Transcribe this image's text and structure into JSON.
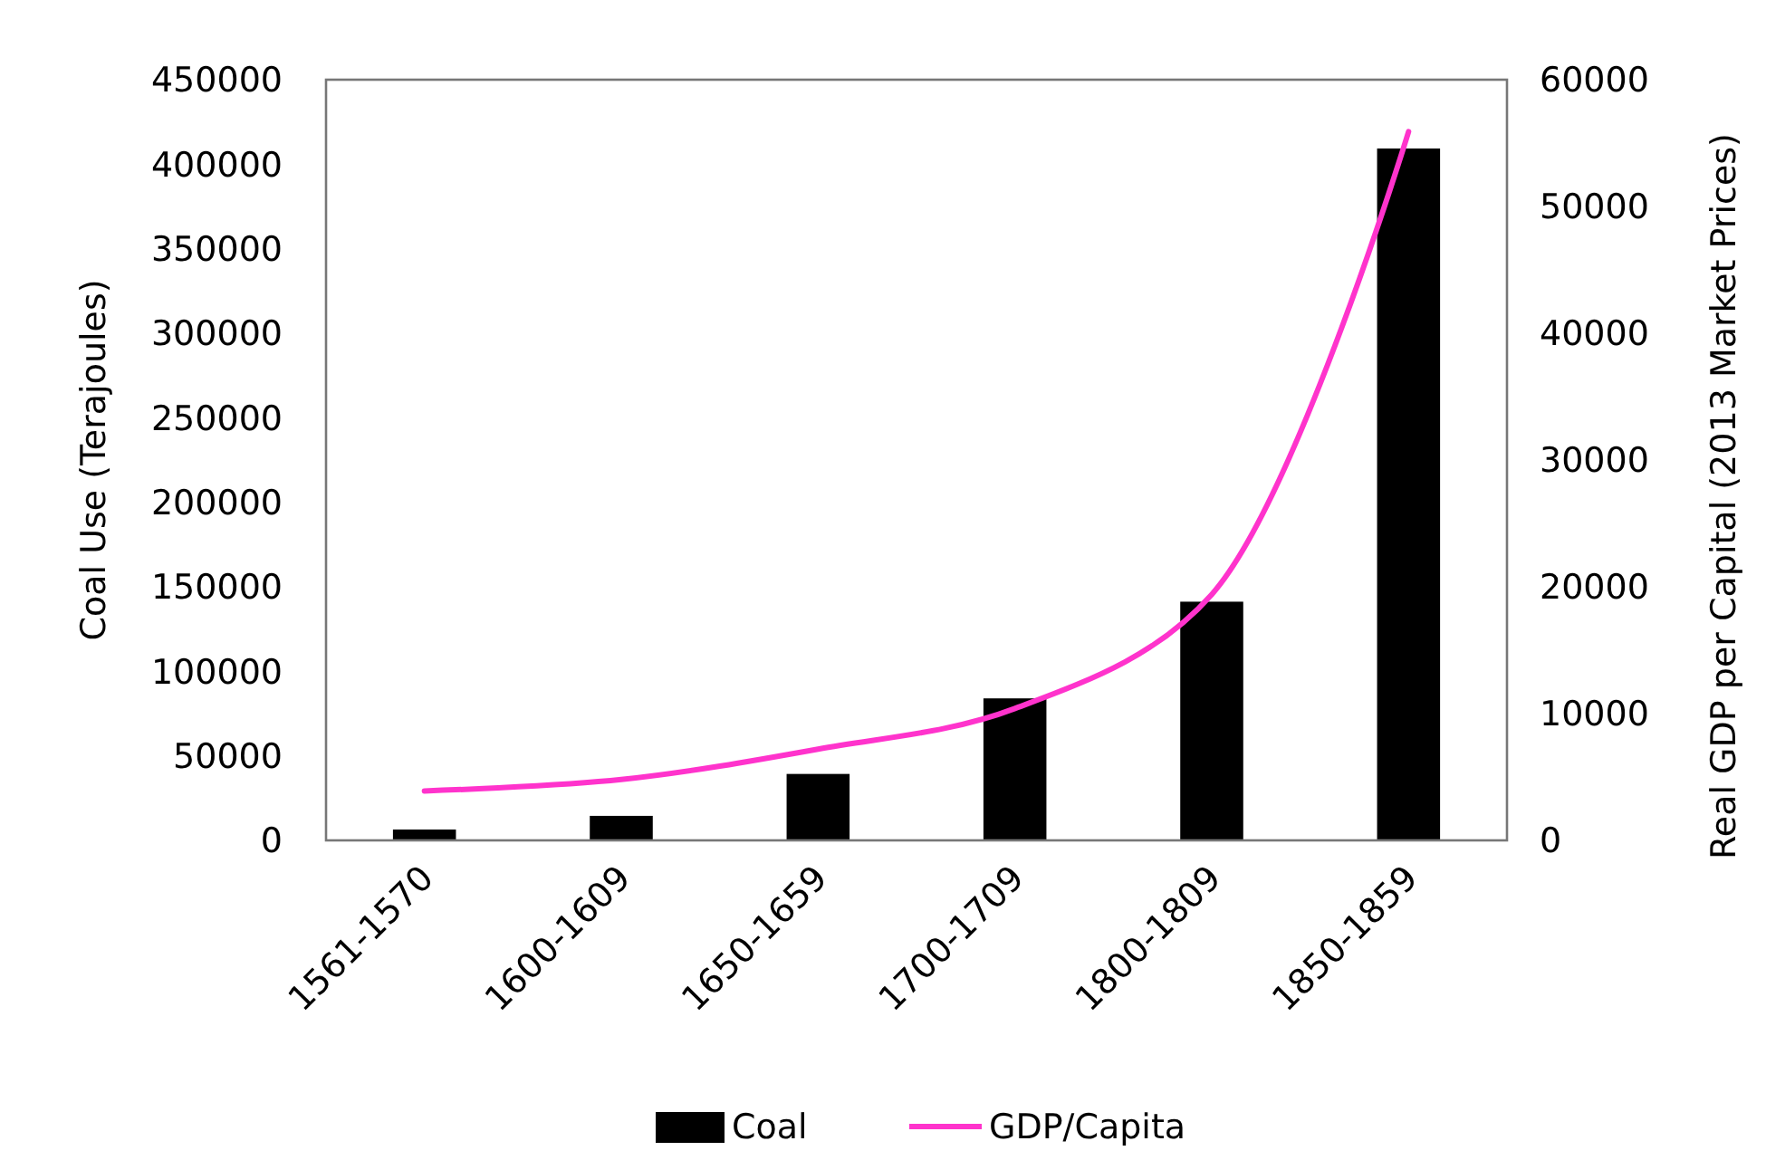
{
  "chart_data": {
    "type": "bar",
    "categories": [
      "1561-1570",
      "1600-1609",
      "1650-1659",
      "1700-1709",
      "1800-1809",
      "1850-1859"
    ],
    "series": [
      {
        "name": "Coal",
        "color": "#000000",
        "values": [
          6400,
          14500,
          39300,
          84000,
          141200,
          409300
        ]
      },
      {
        "name": "GDP/Capita",
        "type": "line",
        "axis": "y2",
        "color": "#ff33cc",
        "values": [
          3900,
          4800,
          7200,
          10400,
          19400,
          55900
        ]
      }
    ],
    "ylabel": "Coal Use (Terajoules)",
    "y2label": "Real GDP per Capital (2013 Market Prices)",
    "ylim": [
      0,
      450000
    ],
    "yticks": [
      0,
      50000,
      100000,
      150000,
      200000,
      250000,
      300000,
      350000,
      400000,
      450000
    ],
    "y2lim": [
      0,
      60000
    ],
    "y2ticks": [
      0,
      10000,
      20000,
      30000,
      40000,
      50000,
      60000
    ],
    "legend": "bottom",
    "grid": false
  }
}
